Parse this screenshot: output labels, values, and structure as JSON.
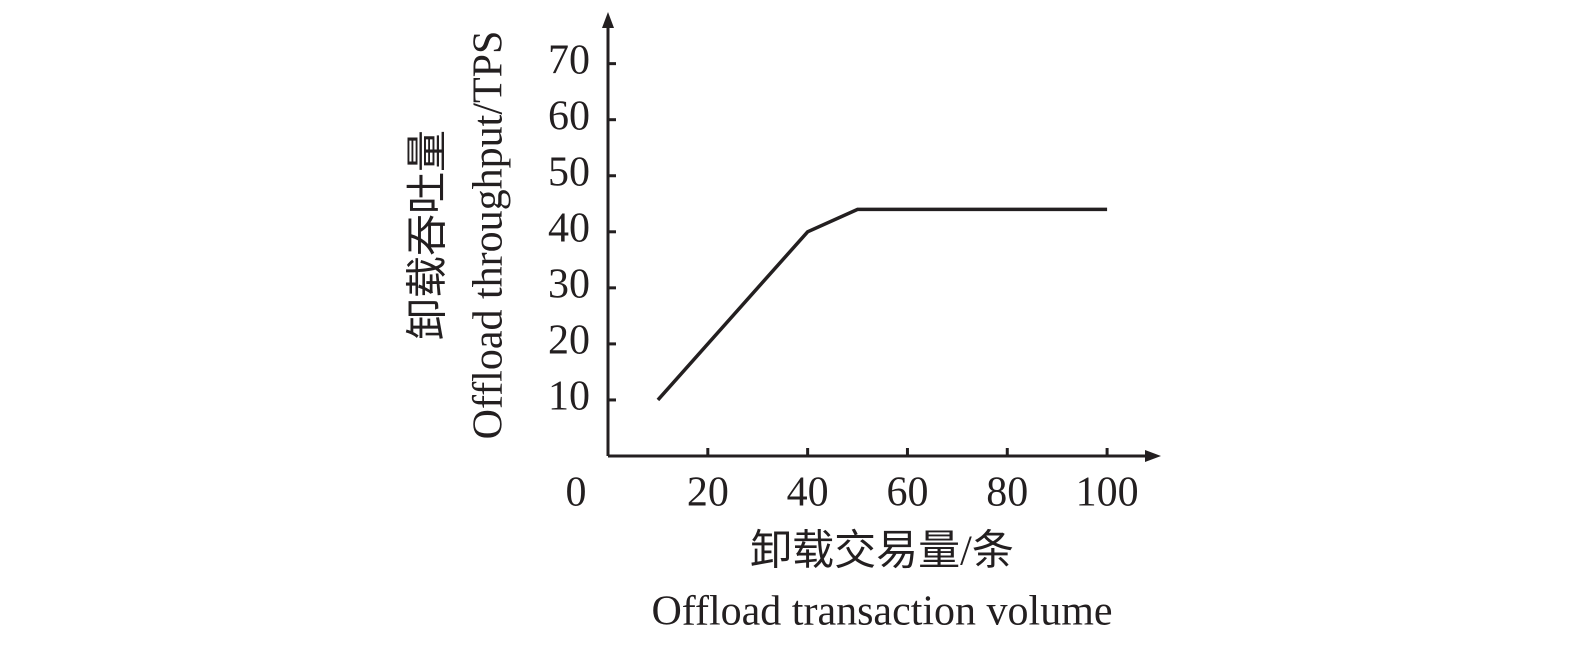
{
  "chart_data": {
    "type": "line",
    "x_label": [
      "卸载交易量/条",
      "Offload transaction volume"
    ],
    "y_label": [
      "卸载吞吐量",
      "Offload throughput/TPS"
    ],
    "x": [
      10,
      40,
      50,
      100
    ],
    "values": [
      10,
      40,
      44,
      44
    ],
    "color": "#231f20",
    "xlim": [
      0,
      110
    ],
    "xticks": [
      0,
      20,
      40,
      60,
      80,
      100
    ],
    "ylim": [
      0,
      78.5
    ],
    "yticks": [
      10,
      20,
      30,
      40,
      50,
      60,
      70
    ],
    "grid": false
  }
}
